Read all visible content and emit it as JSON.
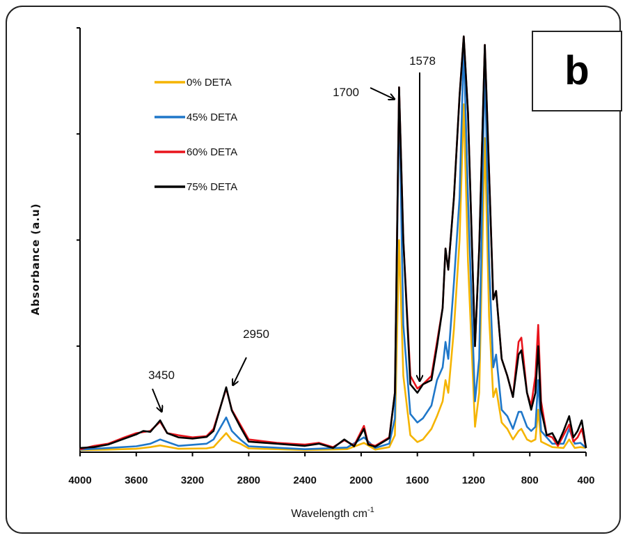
{
  "chart_data": {
    "type": "line",
    "title": "",
    "xlabel": "Wavelength cm",
    "xlabel_sup": "-1",
    "ylabel": "Absorbance (a.u)",
    "xlim": [
      4000,
      400
    ],
    "ylim": [
      0,
      1
    ],
    "x_reversed": true,
    "grid": false,
    "legend_position": "top-left",
    "x_ticks": [
      "4000",
      "3600",
      "3200",
      "2800",
      "2400",
      "2000",
      "1600",
      "1200",
      "800",
      "400"
    ],
    "y_ticks_labeled": false,
    "panel_label": "b",
    "annotations": [
      {
        "text": "3450",
        "x": 3450
      },
      {
        "text": "2950",
        "x": 2950
      },
      {
        "text": "1700",
        "x": 1730
      },
      {
        "text": "1578",
        "x": 1590
      }
    ],
    "series": [
      {
        "name": "0% DETA",
        "color": "#f5b400",
        "points": [
          [
            4000,
            0.005
          ],
          [
            3800,
            0.006
          ],
          [
            3600,
            0.008
          ],
          [
            3500,
            0.012
          ],
          [
            3430,
            0.016
          ],
          [
            3300,
            0.008
          ],
          [
            3100,
            0.009
          ],
          [
            3050,
            0.012
          ],
          [
            2960,
            0.045
          ],
          [
            2920,
            0.028
          ],
          [
            2860,
            0.02
          ],
          [
            2800,
            0.009
          ],
          [
            2400,
            0.005
          ],
          [
            2100,
            0.007
          ],
          [
            1980,
            0.022
          ],
          [
            1900,
            0.006
          ],
          [
            1800,
            0.012
          ],
          [
            1760,
            0.04
          ],
          [
            1730,
            0.5
          ],
          [
            1700,
            0.18
          ],
          [
            1650,
            0.04
          ],
          [
            1600,
            0.024
          ],
          [
            1560,
            0.03
          ],
          [
            1500,
            0.055
          ],
          [
            1460,
            0.085
          ],
          [
            1420,
            0.12
          ],
          [
            1400,
            0.17
          ],
          [
            1380,
            0.14
          ],
          [
            1340,
            0.29
          ],
          [
            1300,
            0.5
          ],
          [
            1270,
            0.82
          ],
          [
            1240,
            0.45
          ],
          [
            1190,
            0.06
          ],
          [
            1160,
            0.14
          ],
          [
            1120,
            0.74
          ],
          [
            1090,
            0.32
          ],
          [
            1060,
            0.13
          ],
          [
            1040,
            0.15
          ],
          [
            1000,
            0.07
          ],
          [
            960,
            0.055
          ],
          [
            920,
            0.03
          ],
          [
            880,
            0.05
          ],
          [
            860,
            0.055
          ],
          [
            820,
            0.03
          ],
          [
            790,
            0.025
          ],
          [
            760,
            0.03
          ],
          [
            740,
            0.1
          ],
          [
            720,
            0.025
          ],
          [
            640,
            0.012
          ],
          [
            560,
            0.01
          ],
          [
            520,
            0.03
          ],
          [
            480,
            0.01
          ],
          [
            440,
            0.012
          ],
          [
            400,
            0.01
          ]
        ]
      },
      {
        "name": "45% DETA",
        "color": "#1f77c9",
        "points": [
          [
            4000,
            0.006
          ],
          [
            3800,
            0.01
          ],
          [
            3600,
            0.014
          ],
          [
            3500,
            0.02
          ],
          [
            3430,
            0.03
          ],
          [
            3300,
            0.015
          ],
          [
            3100,
            0.02
          ],
          [
            3050,
            0.03
          ],
          [
            2960,
            0.082
          ],
          [
            2920,
            0.05
          ],
          [
            2860,
            0.03
          ],
          [
            2800,
            0.014
          ],
          [
            2400,
            0.007
          ],
          [
            2100,
            0.011
          ],
          [
            1980,
            0.035
          ],
          [
            1900,
            0.01
          ],
          [
            1800,
            0.02
          ],
          [
            1760,
            0.08
          ],
          [
            1730,
            0.84
          ],
          [
            1700,
            0.3
          ],
          [
            1650,
            0.09
          ],
          [
            1600,
            0.07
          ],
          [
            1560,
            0.08
          ],
          [
            1500,
            0.11
          ],
          [
            1460,
            0.17
          ],
          [
            1420,
            0.2
          ],
          [
            1400,
            0.26
          ],
          [
            1380,
            0.22
          ],
          [
            1340,
            0.4
          ],
          [
            1300,
            0.6
          ],
          [
            1270,
            0.96
          ],
          [
            1240,
            0.6
          ],
          [
            1190,
            0.12
          ],
          [
            1160,
            0.22
          ],
          [
            1120,
            0.92
          ],
          [
            1090,
            0.45
          ],
          [
            1060,
            0.2
          ],
          [
            1040,
            0.23
          ],
          [
            1000,
            0.1
          ],
          [
            960,
            0.085
          ],
          [
            920,
            0.055
          ],
          [
            880,
            0.095
          ],
          [
            860,
            0.095
          ],
          [
            820,
            0.06
          ],
          [
            790,
            0.05
          ],
          [
            760,
            0.06
          ],
          [
            740,
            0.17
          ],
          [
            720,
            0.05
          ],
          [
            640,
            0.02
          ],
          [
            560,
            0.02
          ],
          [
            520,
            0.055
          ],
          [
            480,
            0.02
          ],
          [
            440,
            0.022
          ],
          [
            400,
            0.01
          ]
        ]
      },
      {
        "name": "60% DETA",
        "color": "#e8141c",
        "points": [
          [
            4000,
            0.007
          ],
          [
            3900,
            0.015
          ],
          [
            3800,
            0.02
          ],
          [
            3700,
            0.033
          ],
          [
            3600,
            0.045
          ],
          [
            3500,
            0.05
          ],
          [
            3430,
            0.072
          ],
          [
            3380,
            0.045
          ],
          [
            3300,
            0.04
          ],
          [
            3200,
            0.035
          ],
          [
            3100,
            0.038
          ],
          [
            3050,
            0.055
          ],
          [
            2960,
            0.15
          ],
          [
            2920,
            0.1
          ],
          [
            2860,
            0.065
          ],
          [
            2800,
            0.03
          ],
          [
            2600,
            0.022
          ],
          [
            2400,
            0.018
          ],
          [
            2300,
            0.022
          ],
          [
            2200,
            0.012
          ],
          [
            2120,
            0.028
          ],
          [
            2050,
            0.016
          ],
          [
            1980,
            0.062
          ],
          [
            1950,
            0.02
          ],
          [
            1900,
            0.015
          ],
          [
            1800,
            0.035
          ],
          [
            1760,
            0.14
          ],
          [
            1730,
            0.86
          ],
          [
            1700,
            0.5
          ],
          [
            1650,
            0.18
          ],
          [
            1600,
            0.15
          ],
          [
            1560,
            0.16
          ],
          [
            1500,
            0.18
          ],
          [
            1460,
            0.26
          ],
          [
            1420,
            0.34
          ],
          [
            1400,
            0.48
          ],
          [
            1380,
            0.43
          ],
          [
            1340,
            0.6
          ],
          [
            1300,
            0.84
          ],
          [
            1270,
            0.98
          ],
          [
            1240,
            0.8
          ],
          [
            1190,
            0.25
          ],
          [
            1160,
            0.48
          ],
          [
            1120,
            0.96
          ],
          [
            1090,
            0.66
          ],
          [
            1060,
            0.36
          ],
          [
            1040,
            0.38
          ],
          [
            1000,
            0.22
          ],
          [
            960,
            0.18
          ],
          [
            920,
            0.13
          ],
          [
            880,
            0.26
          ],
          [
            860,
            0.27
          ],
          [
            820,
            0.14
          ],
          [
            790,
            0.11
          ],
          [
            760,
            0.18
          ],
          [
            740,
            0.3
          ],
          [
            720,
            0.12
          ],
          [
            680,
            0.04
          ],
          [
            640,
            0.035
          ],
          [
            600,
            0.015
          ],
          [
            560,
            0.04
          ],
          [
            520,
            0.065
          ],
          [
            490,
            0.025
          ],
          [
            460,
            0.035
          ],
          [
            430,
            0.055
          ],
          [
            400,
            0.01
          ]
        ]
      },
      {
        "name": "75% DETA",
        "color": "#000000",
        "points": [
          [
            4000,
            0.01
          ],
          [
            3900,
            0.012
          ],
          [
            3800,
            0.018
          ],
          [
            3700,
            0.03
          ],
          [
            3600,
            0.042
          ],
          [
            3550,
            0.05
          ],
          [
            3500,
            0.048
          ],
          [
            3430,
            0.075
          ],
          [
            3380,
            0.045
          ],
          [
            3300,
            0.035
          ],
          [
            3200,
            0.032
          ],
          [
            3100,
            0.036
          ],
          [
            3050,
            0.05
          ],
          [
            2960,
            0.153
          ],
          [
            2920,
            0.098
          ],
          [
            2860,
            0.06
          ],
          [
            2800,
            0.025
          ],
          [
            2600,
            0.02
          ],
          [
            2400,
            0.015
          ],
          [
            2300,
            0.02
          ],
          [
            2200,
            0.01
          ],
          [
            2120,
            0.03
          ],
          [
            2050,
            0.014
          ],
          [
            1980,
            0.055
          ],
          [
            1950,
            0.018
          ],
          [
            1900,
            0.013
          ],
          [
            1800,
            0.033
          ],
          [
            1760,
            0.14
          ],
          [
            1730,
            0.86
          ],
          [
            1700,
            0.5
          ],
          [
            1650,
            0.16
          ],
          [
            1600,
            0.14
          ],
          [
            1560,
            0.16
          ],
          [
            1500,
            0.17
          ],
          [
            1460,
            0.25
          ],
          [
            1420,
            0.34
          ],
          [
            1400,
            0.48
          ],
          [
            1380,
            0.43
          ],
          [
            1340,
            0.6
          ],
          [
            1300,
            0.84
          ],
          [
            1270,
            0.98
          ],
          [
            1240,
            0.8
          ],
          [
            1190,
            0.25
          ],
          [
            1160,
            0.48
          ],
          [
            1120,
            0.96
          ],
          [
            1090,
            0.66
          ],
          [
            1060,
            0.36
          ],
          [
            1040,
            0.38
          ],
          [
            1000,
            0.22
          ],
          [
            960,
            0.18
          ],
          [
            920,
            0.13
          ],
          [
            880,
            0.23
          ],
          [
            860,
            0.24
          ],
          [
            820,
            0.14
          ],
          [
            790,
            0.1
          ],
          [
            760,
            0.14
          ],
          [
            740,
            0.25
          ],
          [
            720,
            0.1
          ],
          [
            680,
            0.04
          ],
          [
            640,
            0.045
          ],
          [
            600,
            0.02
          ],
          [
            560,
            0.05
          ],
          [
            520,
            0.085
          ],
          [
            490,
            0.035
          ],
          [
            460,
            0.05
          ],
          [
            430,
            0.075
          ],
          [
            400,
            0.01
          ]
        ]
      }
    ]
  }
}
